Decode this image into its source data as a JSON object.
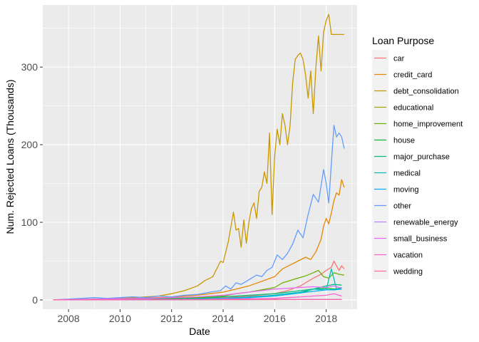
{
  "chart_data": {
    "type": "line",
    "xlabel": "Date",
    "ylabel": "Num. Rejected Loans (Thousands)",
    "xlim": [
      2007.0,
      2019.2
    ],
    "ylim": [
      -12,
      380
    ],
    "x_ticks": [
      2008,
      2010,
      2012,
      2014,
      2016,
      2018
    ],
    "x_tick_labels": [
      "2008",
      "2010",
      "2012",
      "2014",
      "2016",
      "2018"
    ],
    "y_ticks": [
      0,
      100,
      200,
      300
    ],
    "y_tick_labels": [
      "0",
      "100",
      "200",
      "300"
    ],
    "grid": true,
    "legend_title": "Loan Purpose",
    "legend_position": "right",
    "series": [
      {
        "name": "car",
        "color": "#F8766D",
        "x": [
          2007.4,
          2008.0,
          2009.0,
          2010.0,
          2011.0,
          2012.0,
          2013.0,
          2014.0,
          2015.0,
          2016.0,
          2016.5,
          2017.0,
          2017.5,
          2017.8,
          2018.0,
          2018.2,
          2018.3,
          2018.4,
          2018.5,
          2018.6,
          2018.7
        ],
        "y": [
          0,
          0.2,
          0.5,
          0.8,
          1.2,
          1.5,
          2,
          3,
          5,
          8,
          12,
          18,
          28,
          33,
          38,
          42,
          50,
          44,
          38,
          44,
          40
        ]
      },
      {
        "name": "credit_card",
        "color": "#E58700",
        "x": [
          2007.4,
          2008.0,
          2009.0,
          2010.0,
          2011.0,
          2012.0,
          2012.5,
          2013.0,
          2013.5,
          2014.0,
          2014.5,
          2015.0,
          2015.5,
          2016.0,
          2016.3,
          2016.6,
          2016.9,
          2017.2,
          2017.4,
          2017.6,
          2017.8,
          2017.9,
          2018.0,
          2018.1,
          2018.2,
          2018.3,
          2018.4,
          2018.5,
          2018.6,
          2018.7
        ],
        "y": [
          0,
          0.3,
          0.8,
          1.5,
          2.5,
          3.5,
          5,
          6,
          8,
          10,
          14,
          18,
          24,
          30,
          40,
          45,
          50,
          55,
          52,
          62,
          78,
          95,
          105,
          98,
          112,
          128,
          138,
          135,
          155,
          145
        ]
      },
      {
        "name": "debt_consolidation",
        "color": "#C99800",
        "x": [
          2007.4,
          2008.0,
          2009.0,
          2010.0,
          2011.0,
          2011.5,
          2012.0,
          2012.5,
          2013.0,
          2013.3,
          2013.6,
          2013.9,
          2014.0,
          2014.2,
          2014.4,
          2014.5,
          2014.6,
          2014.7,
          2014.8,
          2014.9,
          2015.0,
          2015.1,
          2015.2,
          2015.3,
          2015.4,
          2015.5,
          2015.6,
          2015.7,
          2015.8,
          2015.9,
          2016.0,
          2016.1,
          2016.2,
          2016.3,
          2016.4,
          2016.5,
          2016.6,
          2016.7,
          2016.8,
          2016.9,
          2017.0,
          2017.1,
          2017.2,
          2017.3,
          2017.4,
          2017.5,
          2017.6,
          2017.7,
          2017.8,
          2017.9,
          2018.0,
          2018.1,
          2018.2,
          2018.3,
          2018.4,
          2018.5,
          2018.6,
          2018.7
        ],
        "y": [
          0,
          0.5,
          1,
          2,
          4,
          5,
          8,
          12,
          18,
          25,
          30,
          50,
          48,
          75,
          113,
          90,
          92,
          68,
          103,
          73,
          100,
          118,
          125,
          105,
          140,
          145,
          165,
          150,
          215,
          110,
          185,
          220,
          200,
          240,
          225,
          200,
          225,
          280,
          310,
          315,
          318,
          310,
          290,
          260,
          295,
          240,
          300,
          340,
          295,
          345,
          360,
          368,
          342,
          342,
          342,
          342,
          342,
          342
        ]
      },
      {
        "name": "educational",
        "color": "#A3A500",
        "x": [
          2007.4,
          2008.0,
          2010.0,
          2012.0,
          2014.0,
          2016.0,
          2017.0,
          2017.5,
          2018.0,
          2018.3,
          2018.6
        ],
        "y": [
          0,
          0.1,
          0.2,
          0.2,
          0.3,
          0.4,
          0.5,
          0.5,
          0.5,
          0.5,
          0.5
        ]
      },
      {
        "name": "home_improvement",
        "color": "#6BB100",
        "x": [
          2007.4,
          2008.0,
          2009.0,
          2010.0,
          2011.0,
          2012.0,
          2013.0,
          2014.0,
          2014.5,
          2015.0,
          2015.5,
          2016.0,
          2016.3,
          2016.6,
          2016.9,
          2017.2,
          2017.5,
          2017.7,
          2017.9,
          2018.1,
          2018.3,
          2018.5,
          2018.7
        ],
        "y": [
          0,
          0.2,
          0.5,
          1,
          1.5,
          2,
          3,
          5,
          8,
          10,
          13,
          16,
          22,
          25,
          28,
          31,
          35,
          38,
          30,
          28,
          35,
          33,
          32
        ]
      },
      {
        "name": "house",
        "color": "#00BA38",
        "x": [
          2007.4,
          2009.0,
          2011.0,
          2013.0,
          2014.0,
          2015.0,
          2016.0,
          2016.5,
          2017.0,
          2017.5,
          2018.0,
          2018.3,
          2018.6
        ],
        "y": [
          0,
          0.2,
          0.5,
          1,
          2,
          3,
          6,
          8,
          9,
          14,
          15,
          14,
          15
        ]
      },
      {
        "name": "major_purchase",
        "color": "#00BF7D",
        "x": [
          2007.4,
          2009.0,
          2011.0,
          2013.0,
          2014.0,
          2015.0,
          2016.0,
          2016.5,
          2017.0,
          2017.5,
          2018.0,
          2018.3,
          2018.6
        ],
        "y": [
          0,
          0.3,
          0.8,
          2,
          4,
          6,
          8,
          10,
          12,
          14,
          18,
          20,
          19
        ]
      },
      {
        "name": "medical",
        "color": "#00C0B8",
        "x": [
          2007.4,
          2009.0,
          2011.0,
          2013.0,
          2014.0,
          2015.0,
          2016.0,
          2016.5,
          2017.0,
          2017.5,
          2018.0,
          2018.2,
          2018.4,
          2018.6
        ],
        "y": [
          0,
          0.2,
          0.5,
          1,
          2,
          4,
          6,
          8,
          10,
          14,
          13,
          40,
          14,
          16
        ]
      },
      {
        "name": "moving",
        "color": "#00B4EF",
        "x": [
          2007.4,
          2009.0,
          2011.0,
          2013.0,
          2014.0,
          2015.0,
          2016.0,
          2016.5,
          2017.0,
          2017.5,
          2018.0,
          2018.3,
          2018.6
        ],
        "y": [
          0,
          0.2,
          0.5,
          1,
          2,
          3,
          5,
          7,
          9,
          11,
          13,
          13,
          14
        ]
      },
      {
        "name": "other",
        "color": "#619CFF",
        "x": [
          2007.4,
          2008.0,
          2008.5,
          2009.0,
          2009.5,
          2010.0,
          2010.5,
          2011.0,
          2011.5,
          2012.0,
          2012.5,
          2013.0,
          2013.5,
          2013.9,
          2014.1,
          2014.3,
          2014.5,
          2014.7,
          2014.9,
          2015.1,
          2015.3,
          2015.5,
          2015.7,
          2015.9,
          2016.1,
          2016.3,
          2016.5,
          2016.7,
          2016.9,
          2017.1,
          2017.3,
          2017.5,
          2017.7,
          2017.9,
          2018.0,
          2018.1,
          2018.2,
          2018.3,
          2018.4,
          2018.5,
          2018.6,
          2018.7
        ],
        "y": [
          0,
          1,
          2,
          3,
          2,
          3,
          4,
          3,
          5,
          4,
          6,
          7,
          10,
          12,
          18,
          14,
          22,
          20,
          24,
          28,
          32,
          30,
          38,
          42,
          58,
          52,
          60,
          72,
          90,
          80,
          110,
          136,
          126,
          168,
          150,
          125,
          176,
          225,
          210,
          215,
          210,
          195
        ]
      },
      {
        "name": "renewable_energy",
        "color": "#B983FF",
        "x": [
          2007.4,
          2009.0,
          2011.0,
          2013.0,
          2015.0,
          2016.0,
          2017.0,
          2018.0,
          2018.6
        ],
        "y": [
          0,
          0.1,
          0.2,
          0.3,
          0.4,
          0.5,
          0.6,
          0.8,
          0.8
        ]
      },
      {
        "name": "small_business",
        "color": "#E76BF3",
        "x": [
          2007.4,
          2008.0,
          2009.0,
          2010.0,
          2011.0,
          2012.0,
          2013.0,
          2014.0,
          2014.5,
          2015.0,
          2015.5,
          2016.0,
          2016.5,
          2017.0,
          2017.5,
          2018.0,
          2018.3,
          2018.6
        ],
        "y": [
          0,
          0.5,
          1,
          1.5,
          2,
          3,
          4,
          6,
          8,
          10,
          12,
          14,
          15,
          16,
          17,
          16,
          18,
          15
        ]
      },
      {
        "name": "vacation",
        "color": "#FD61D1",
        "x": [
          2007.4,
          2009.0,
          2011.0,
          2013.0,
          2014.0,
          2015.0,
          2016.0,
          2016.5,
          2017.0,
          2017.5,
          2018.0,
          2018.3,
          2018.6
        ],
        "y": [
          0,
          0.2,
          0.4,
          0.6,
          1,
          1.5,
          2,
          3,
          4,
          5,
          6,
          8,
          5
        ]
      },
      {
        "name": "wedding",
        "color": "#FF67A4",
        "x": [
          2007.4,
          2009.0,
          2011.0,
          2013.0,
          2015.0,
          2016.0,
          2017.0,
          2018.0,
          2018.6
        ],
        "y": [
          0,
          0.2,
          0.4,
          0.5,
          0.5,
          0.5,
          0.5,
          0.5,
          0.5
        ]
      }
    ]
  }
}
